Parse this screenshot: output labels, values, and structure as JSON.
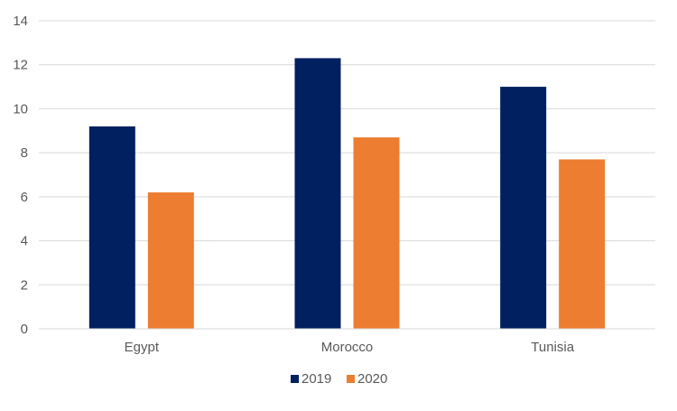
{
  "chart_data": {
    "type": "bar",
    "title": "",
    "xlabel": "",
    "ylabel": "",
    "categories": [
      "Egypt",
      "Morocco",
      "Tunisia"
    ],
    "series": [
      {
        "name": "2019",
        "color": "#002060",
        "values": [
          9.2,
          12.3,
          11.0
        ]
      },
      {
        "name": "2020",
        "color": "#ED7D31",
        "values": [
          6.2,
          8.7,
          7.7
        ]
      }
    ],
    "ylim": [
      0,
      14
    ],
    "yticks": [
      "0",
      "2",
      "4",
      "6",
      "8",
      "10",
      "12",
      "14"
    ],
    "grid": true,
    "legend_position": "bottom"
  }
}
